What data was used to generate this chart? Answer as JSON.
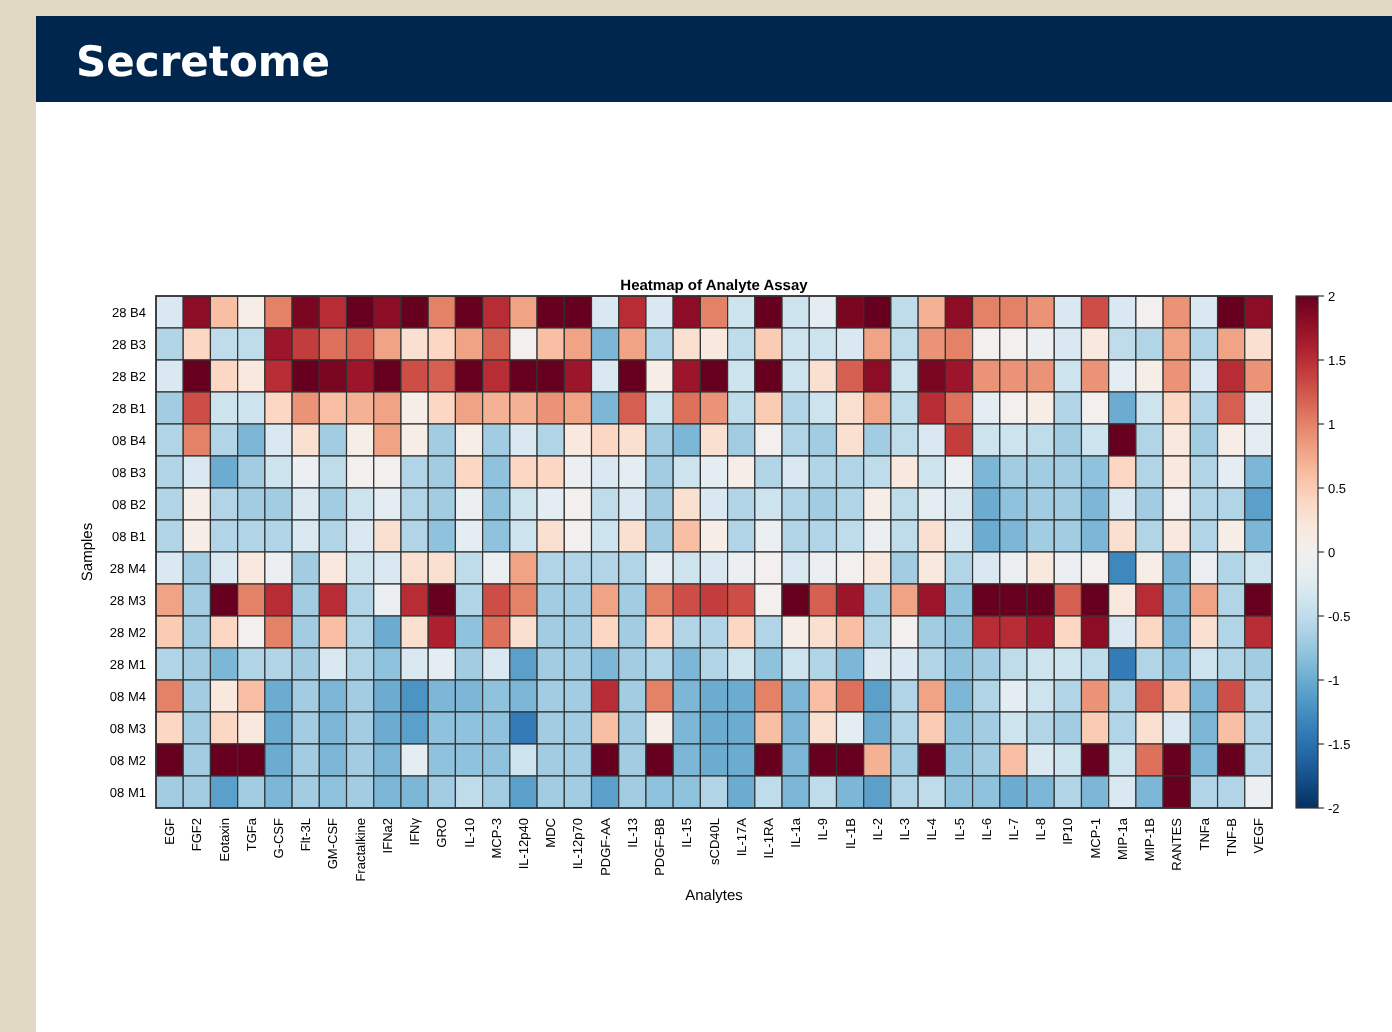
{
  "chart_data": {
    "type": "heatmap",
    "title": "Secretome",
    "subtitle": "Heatmap of Analyte Assay",
    "xlabel": "Analytes",
    "ylabel": "Samples",
    "categories": [
      "EGF",
      "FGF2",
      "Eotaxin",
      "TGFa",
      "G-CSF",
      "Flt-3L",
      "GM-CSF",
      "Fractalkine",
      "IFNa2",
      "IFNγ",
      "GRO",
      "IL-10",
      "MCP-3",
      "IL-12p40",
      "MDC",
      "IL-12p70",
      "PDGF-AA",
      "IL-13",
      "PDGF-BB",
      "IL-15",
      "sCD40L",
      "IL-17A",
      "IL-1RA",
      "IL-1a",
      "IL-9",
      "IL-1B",
      "IL-2",
      "IL-3",
      "IL-4",
      "IL-5",
      "IL-6",
      "IL-7",
      "IL-8",
      "IP10",
      "MCP-1",
      "MIP-1a",
      "MIP-1B",
      "RANTES",
      "TNFa",
      "TNF-B",
      "VEGF"
    ],
    "y_categories": [
      "28 B4",
      "28 B3",
      "28 B2",
      "28 B1",
      "08 B4",
      "08 B3",
      "08 B2",
      "08 B1",
      "28 M4",
      "28 M3",
      "28 M2",
      "28 M1",
      "08 M4",
      "08 M3",
      "08 M2",
      "08 M1"
    ],
    "cells": [
      [
        -0.3,
        1.8,
        0.6,
        0.1,
        1.0,
        1.9,
        1.5,
        2,
        1.8,
        2,
        1.0,
        2,
        1.5,
        0.8,
        2,
        2,
        -0.3,
        1.5,
        -0.3,
        1.8,
        1.0,
        -0.4,
        2,
        -0.4,
        -0.2,
        1.9,
        2,
        -0.5,
        0.7,
        1.8,
        1.0,
        1.0,
        0.9,
        -0.3,
        1.3,
        -0.3,
        0.0,
        0.9,
        -0.3,
        2,
        1.8
      ],
      [
        -0.6,
        0.4,
        -0.5,
        -0.5,
        1.7,
        1.4,
        1.1,
        1.2,
        0.8,
        0.3,
        0.4,
        0.8,
        1.2,
        0.0,
        0.6,
        0.8,
        -0.9,
        0.8,
        -0.6,
        0.3,
        0.2,
        -0.5,
        0.5,
        -0.4,
        -0.4,
        -0.3,
        0.8,
        -0.5,
        0.9,
        1.0,
        0.0,
        0.0,
        -0.1,
        -0.3,
        0.2,
        -0.5,
        -0.6,
        0.8,
        -0.6,
        0.8,
        0.3
      ],
      [
        -0.3,
        2,
        0.4,
        0.2,
        1.5,
        2,
        1.9,
        1.7,
        2,
        1.3,
        1.2,
        2,
        1.5,
        2,
        2,
        1.7,
        -0.3,
        2,
        0.1,
        1.7,
        2,
        -0.4,
        2,
        -0.4,
        0.3,
        1.2,
        1.8,
        -0.4,
        1.9,
        1.7,
        0.9,
        0.9,
        0.9,
        -0.4,
        0.9,
        -0.2,
        0.1,
        0.9,
        -0.3,
        1.5,
        0.9
      ],
      [
        -0.7,
        1.3,
        -0.4,
        -0.4,
        0.4,
        0.9,
        0.6,
        0.7,
        0.8,
        0.1,
        0.4,
        0.8,
        0.7,
        0.7,
        0.9,
        0.8,
        -0.9,
        1.2,
        -0.4,
        1.1,
        0.9,
        -0.5,
        0.5,
        -0.6,
        -0.4,
        0.3,
        0.8,
        -0.5,
        1.5,
        1.1,
        -0.2,
        0.0,
        0.1,
        -0.6,
        0.0,
        -1.0,
        -0.4,
        0.4,
        -0.6,
        1.2,
        -0.2
      ],
      [
        -0.6,
        1.0,
        -0.6,
        -0.9,
        -0.3,
        0.3,
        -0.7,
        0.1,
        0.8,
        0.1,
        -0.7,
        0.1,
        -0.7,
        -0.3,
        -0.6,
        0.2,
        0.4,
        0.3,
        -0.7,
        -0.9,
        0.3,
        -0.7,
        0.0,
        -0.6,
        -0.7,
        0.3,
        -0.7,
        -0.5,
        -0.3,
        1.4,
        -0.4,
        -0.4,
        -0.5,
        -0.7,
        -0.4,
        2,
        -0.6,
        0.2,
        -0.7,
        0.1,
        -0.2
      ],
      [
        -0.6,
        -0.3,
        -1.0,
        -0.7,
        -0.4,
        -0.1,
        -0.5,
        0.0,
        0.0,
        -0.6,
        -0.7,
        0.4,
        -0.8,
        0.4,
        0.4,
        -0.1,
        -0.3,
        -0.2,
        -0.7,
        -0.4,
        -0.2,
        0.1,
        -0.6,
        -0.3,
        -0.6,
        -0.6,
        -0.5,
        0.2,
        -0.4,
        -0.1,
        -0.9,
        -0.7,
        -0.7,
        -0.7,
        -0.8,
        0.4,
        -0.6,
        0.2,
        -0.6,
        -0.2,
        -0.9
      ],
      [
        -0.6,
        0.1,
        -0.6,
        -0.7,
        -0.7,
        -0.3,
        -0.7,
        -0.4,
        -0.2,
        -0.6,
        -0.7,
        -0.1,
        -0.8,
        -0.4,
        -0.2,
        0.0,
        -0.5,
        -0.3,
        -0.7,
        0.3,
        -0.3,
        -0.6,
        -0.4,
        -0.6,
        -0.7,
        -0.6,
        0.1,
        -0.5,
        -0.2,
        -0.3,
        -1.0,
        -0.8,
        -0.7,
        -0.7,
        -0.9,
        -0.3,
        -0.7,
        0.0,
        -0.6,
        -0.6,
        -1.1
      ],
      [
        -0.6,
        0.1,
        -0.6,
        -0.6,
        -0.6,
        -0.3,
        -0.6,
        -0.3,
        0.3,
        -0.6,
        -0.8,
        -0.2,
        -0.8,
        -0.4,
        0.3,
        0.0,
        -0.4,
        0.3,
        -0.7,
        0.6,
        0.1,
        -0.6,
        -0.1,
        -0.6,
        -0.6,
        -0.5,
        -0.1,
        -0.5,
        0.3,
        -0.3,
        -1.0,
        -0.9,
        -0.7,
        -0.7,
        -0.9,
        0.3,
        -0.6,
        0.2,
        -0.6,
        0.1,
        -0.9
      ],
      [
        -0.3,
        -0.7,
        -0.3,
        0.2,
        -0.1,
        -0.7,
        0.2,
        -0.4,
        -0.3,
        0.3,
        0.3,
        -0.5,
        -0.1,
        0.8,
        -0.6,
        -0.6,
        -0.6,
        -0.6,
        -0.2,
        -0.4,
        -0.3,
        -0.1,
        0.0,
        -0.3,
        -0.1,
        0.0,
        0.2,
        -0.7,
        0.2,
        -0.6,
        -0.3,
        -0.1,
        0.2,
        -0.1,
        0.0,
        -1.3,
        0.1,
        -0.9,
        -0.1,
        -0.6,
        -0.4
      ],
      [
        0.8,
        -0.7,
        2,
        1.0,
        1.5,
        -0.7,
        1.5,
        -0.6,
        -0.1,
        1.5,
        2,
        -0.6,
        1.3,
        1.0,
        -0.7,
        -0.7,
        0.8,
        -0.7,
        1.0,
        1.3,
        1.4,
        1.3,
        0.0,
        2,
        1.2,
        1.7,
        -0.7,
        0.8,
        1.7,
        -0.8,
        2,
        2,
        2,
        1.2,
        2,
        0.2,
        1.5,
        -0.9,
        0.8,
        -0.6,
        2
      ],
      [
        0.5,
        -0.7,
        0.4,
        0.0,
        1.0,
        -0.7,
        0.6,
        -0.6,
        -1.0,
        0.3,
        1.6,
        -0.8,
        1.1,
        0.3,
        -0.7,
        -0.7,
        0.4,
        -0.7,
        0.4,
        -0.6,
        -0.6,
        0.4,
        -0.6,
        0.1,
        0.3,
        0.6,
        -0.6,
        0.0,
        -0.7,
        -0.8,
        1.5,
        1.5,
        1.7,
        0.4,
        1.8,
        -0.3,
        0.4,
        -0.9,
        0.3,
        -0.6,
        1.5
      ],
      [
        -0.6,
        -0.7,
        -0.9,
        -0.6,
        -0.6,
        -0.7,
        -0.3,
        -0.6,
        -0.8,
        -0.3,
        -0.2,
        -0.7,
        -0.3,
        -1.1,
        -0.7,
        -0.7,
        -0.9,
        -0.7,
        -0.6,
        -0.9,
        -0.6,
        -0.4,
        -0.8,
        -0.4,
        -0.6,
        -0.9,
        -0.3,
        -0.3,
        -0.6,
        -0.8,
        -0.7,
        -0.5,
        -0.4,
        -0.4,
        -0.5,
        -1.4,
        -0.6,
        -0.8,
        -0.4,
        -0.6,
        -0.7
      ],
      [
        1.0,
        -0.7,
        0.2,
        0.6,
        -1.0,
        -0.7,
        -0.9,
        -0.7,
        -1.0,
        -1.2,
        -0.9,
        -0.9,
        -0.8,
        -0.9,
        -0.7,
        -0.7,
        1.5,
        -0.7,
        1.0,
        -0.9,
        -1.0,
        -1.0,
        1.0,
        -0.9,
        0.6,
        1.1,
        -1.1,
        -0.6,
        0.8,
        -0.9,
        -0.6,
        -0.2,
        -0.4,
        -0.6,
        0.9,
        -0.6,
        1.2,
        0.5,
        -0.9,
        1.3,
        -0.6
      ],
      [
        0.4,
        -0.7,
        0.4,
        0.2,
        -1.0,
        -0.7,
        -0.9,
        -0.7,
        -1.0,
        -1.1,
        -0.8,
        -0.8,
        -0.8,
        -1.4,
        -0.7,
        -0.7,
        0.6,
        -0.7,
        0.1,
        -0.9,
        -1.0,
        -1.0,
        0.6,
        -0.9,
        0.3,
        -0.2,
        -1.0,
        -0.6,
        0.5,
        -0.8,
        -0.7,
        -0.4,
        -0.6,
        -0.7,
        0.5,
        -0.6,
        0.3,
        -0.3,
        -0.9,
        0.6,
        -0.6
      ],
      [
        2,
        -0.7,
        2,
        2,
        -1.0,
        -0.7,
        -0.9,
        -0.7,
        -0.9,
        -0.2,
        -0.8,
        -0.8,
        -0.8,
        -0.4,
        -0.7,
        -0.7,
        2,
        -0.7,
        2,
        -0.9,
        -1.0,
        -1.0,
        2,
        -0.9,
        2,
        2,
        0.7,
        -0.7,
        2,
        -0.8,
        -0.7,
        0.6,
        -0.3,
        -0.4,
        2,
        -0.4,
        1.1,
        2,
        -0.9,
        2,
        -0.6
      ],
      [
        -0.7,
        -0.7,
        -1.1,
        -0.7,
        -0.9,
        -0.7,
        -0.8,
        -0.7,
        -0.9,
        -0.9,
        -0.7,
        -0.5,
        -0.7,
        -1.1,
        -0.7,
        -0.7,
        -1.1,
        -0.7,
        -0.8,
        -0.8,
        -0.6,
        -1.0,
        -0.5,
        -0.9,
        -0.5,
        -0.9,
        -1.1,
        -0.6,
        -0.5,
        -0.8,
        -0.8,
        -1.0,
        -0.9,
        -0.6,
        -0.9,
        -0.3,
        -0.9,
        2,
        -0.6,
        -0.6,
        -0.1
      ]
    ],
    "clim": [
      -2,
      2
    ],
    "cticks": [
      -2,
      -1.5,
      -1,
      -0.5,
      0,
      0.5,
      1,
      1.5,
      2
    ]
  }
}
